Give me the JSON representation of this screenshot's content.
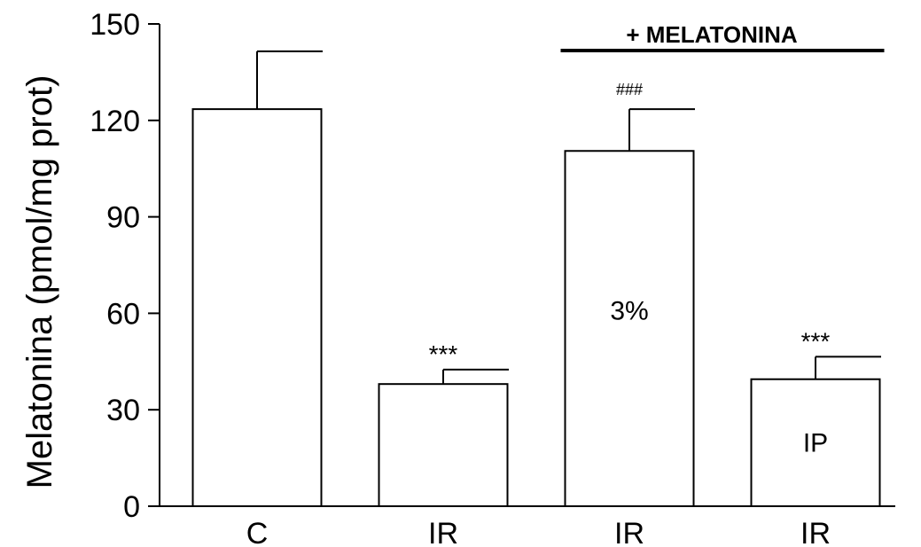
{
  "chart_data": {
    "type": "bar",
    "ylabel": "Melatonina (pmol/mg prot)",
    "ylim": [
      0,
      150
    ],
    "yticks": [
      0,
      30,
      60,
      90,
      120,
      150
    ],
    "categories": [
      "C",
      "IR",
      "IR",
      "IR"
    ],
    "values": [
      123.5,
      38,
      110.5,
      39.5
    ],
    "errors": [
      18,
      4.5,
      13,
      7
    ],
    "annotations_above": [
      "",
      "***",
      "###",
      "***"
    ],
    "bar_inner_labels": [
      "",
      "",
      "3%",
      "IP"
    ],
    "group_label": "+ MELATONINA",
    "group_covers": [
      2,
      3
    ],
    "bar_fill": "#ffffff",
    "stroke_color": "#000000"
  }
}
